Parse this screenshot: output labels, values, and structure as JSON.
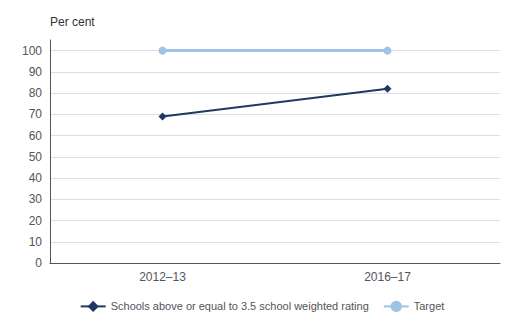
{
  "chart_data": {
    "type": "line",
    "ylabel": "Per cent",
    "categories": [
      "2012–13",
      "2016–17"
    ],
    "series": [
      {
        "name": "Schools above or equal to 3.5 school weighted rating",
        "color": "#1F3864",
        "marker": "diamond",
        "values": [
          69,
          82
        ]
      },
      {
        "name": "Target",
        "color": "#9DC3E6",
        "marker": "circle",
        "values": [
          100,
          100
        ]
      }
    ],
    "ylim": [
      0,
      105
    ],
    "yticks": [
      0,
      10,
      20,
      30,
      40,
      50,
      60,
      70,
      80,
      90,
      100
    ],
    "grid": true,
    "legend": "bottom"
  }
}
